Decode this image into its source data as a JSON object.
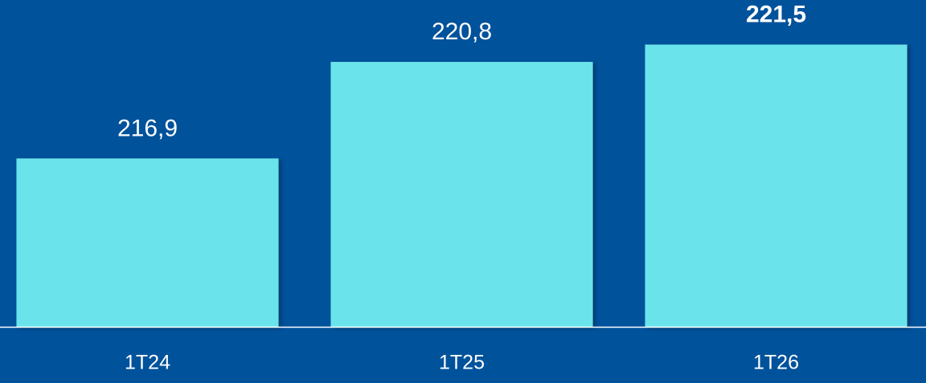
{
  "chart_data": {
    "type": "bar",
    "categories": [
      "1T24",
      "1T25",
      "1T26"
    ],
    "values": [
      216.9,
      220.8,
      221.5
    ],
    "value_labels": [
      "216,9",
      "220,8",
      "221,5"
    ],
    "color": "#6be4ea",
    "ylim": [
      210.1,
      223.3
    ]
  }
}
